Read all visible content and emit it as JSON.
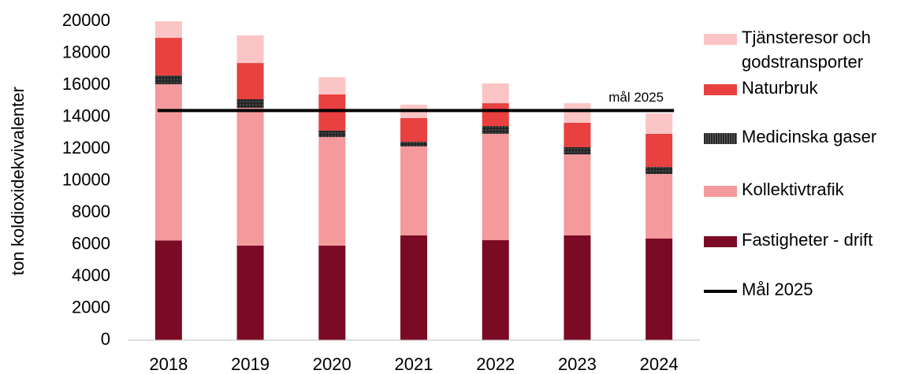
{
  "chart_data": {
    "type": "stacked_bar",
    "y_label": "ton koldioxidekvivalenter",
    "categories": [
      "2018",
      "2019",
      "2020",
      "2021",
      "2022",
      "2023",
      "2024"
    ],
    "series": [
      {
        "name": "Fastigheter - drift",
        "color": "#7b0a24",
        "values": [
          6250,
          5930,
          5930,
          6570,
          6270,
          6570,
          6370
        ]
      },
      {
        "name": "Kollektivtrafik",
        "color": "#f4999c",
        "values": [
          9800,
          8640,
          6810,
          5580,
          6670,
          5080,
          4050
        ]
      },
      {
        "name": "Medicinska gaser",
        "color": "#262626",
        "values": [
          550,
          540,
          400,
          290,
          490,
          450,
          440
        ]
      },
      {
        "name": "Naturbruk",
        "color": "#e94040",
        "values": [
          2360,
          2270,
          2270,
          1490,
          1430,
          1530,
          2080
        ]
      },
      {
        "name": "Tjänsteresor och godstransporter",
        "color": "#fcc5c5",
        "values": [
          1040,
          1730,
          1080,
          840,
          1240,
          1230,
          1280
        ]
      }
    ],
    "target": {
      "name": "Mål 2025",
      "label": "mål 2025",
      "value": 14400,
      "color": "#000000"
    },
    "ylim": [
      0,
      20000
    ],
    "yticks": [
      0,
      2000,
      4000,
      6000,
      8000,
      10000,
      12000,
      14000,
      16000,
      18000,
      20000
    ],
    "grid": false
  }
}
